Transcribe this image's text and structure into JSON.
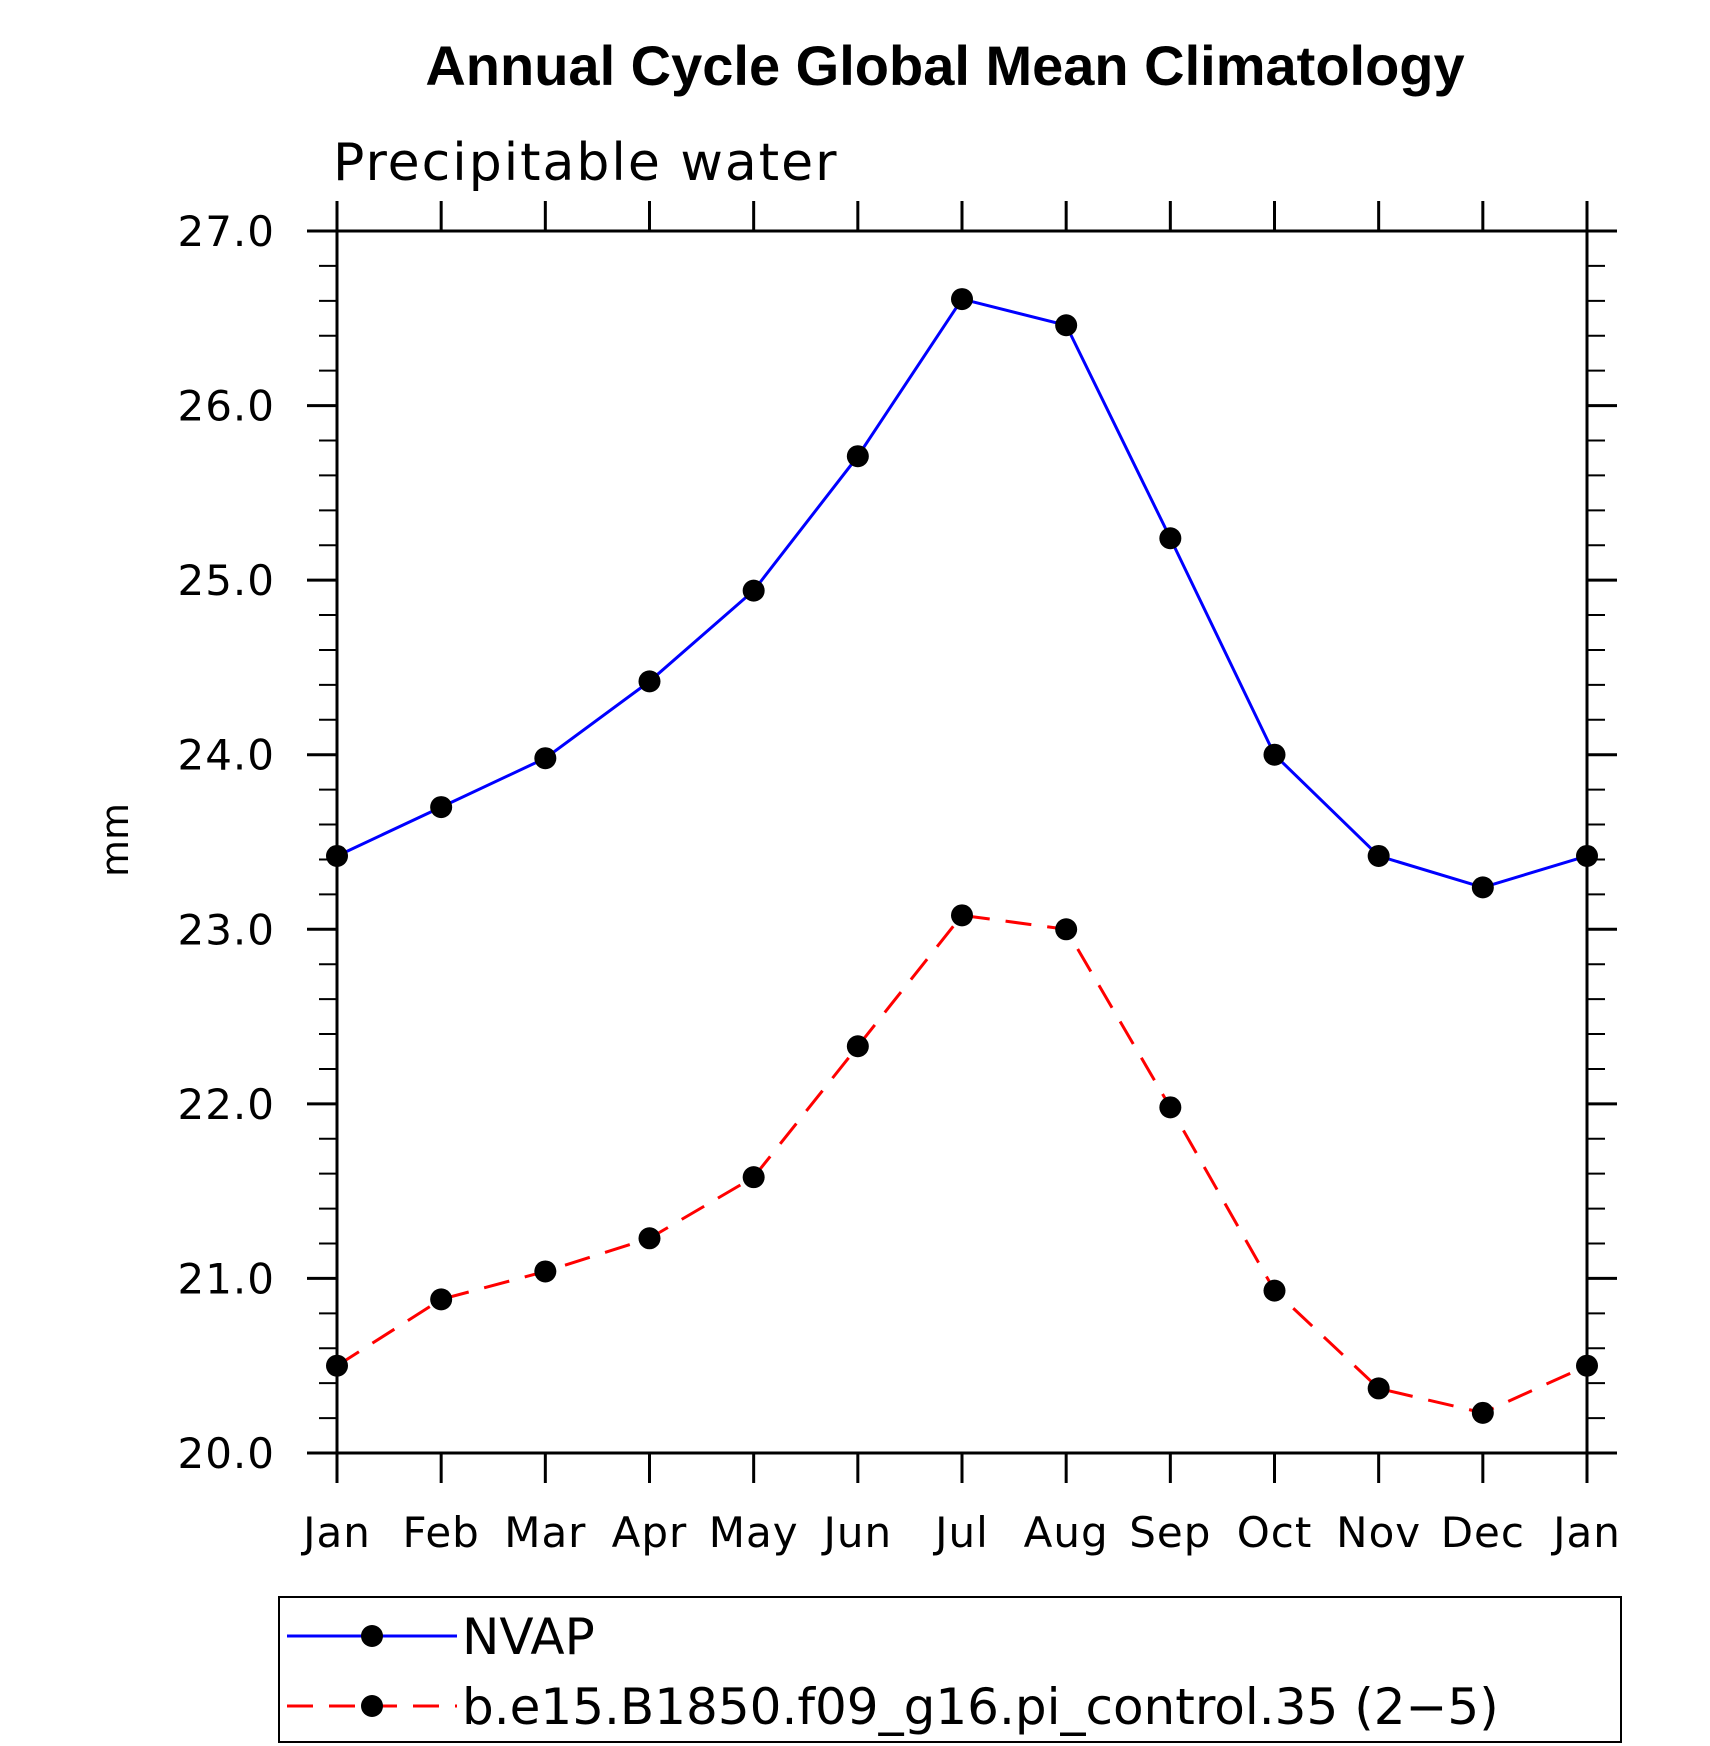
{
  "chart_data": {
    "type": "line",
    "title": "Annual Cycle Global Mean Climatology",
    "subtitle": "Precipitable water",
    "xlabel": "",
    "ylabel": "mm",
    "categories": [
      "Jan",
      "Feb",
      "Mar",
      "Apr",
      "May",
      "Jun",
      "Jul",
      "Aug",
      "Sep",
      "Oct",
      "Nov",
      "Dec",
      "Jan"
    ],
    "ylim": [
      20.0,
      27.0
    ],
    "yticks": [
      "20.0",
      "21.0",
      "22.0",
      "23.0",
      "24.0",
      "25.0",
      "26.0",
      "27.0"
    ],
    "grid": false,
    "legend_position": "bottom",
    "series": [
      {
        "name": "NVAP",
        "color": "#0000ff",
        "dash": "solid",
        "marker": "dot",
        "values": [
          23.42,
          23.7,
          23.98,
          24.42,
          24.94,
          25.71,
          26.61,
          26.46,
          25.24,
          24.0,
          23.42,
          23.24,
          23.42
        ]
      },
      {
        "name": "b.e15.B1850.f09_g16.pi_control.35 (2−5)",
        "color": "#ff0000",
        "dash": "dashed",
        "marker": "dot",
        "values": [
          20.5,
          20.88,
          21.04,
          21.23,
          21.58,
          22.33,
          23.08,
          23.0,
          21.98,
          20.93,
          20.37,
          20.23,
          20.5
        ]
      }
    ]
  }
}
